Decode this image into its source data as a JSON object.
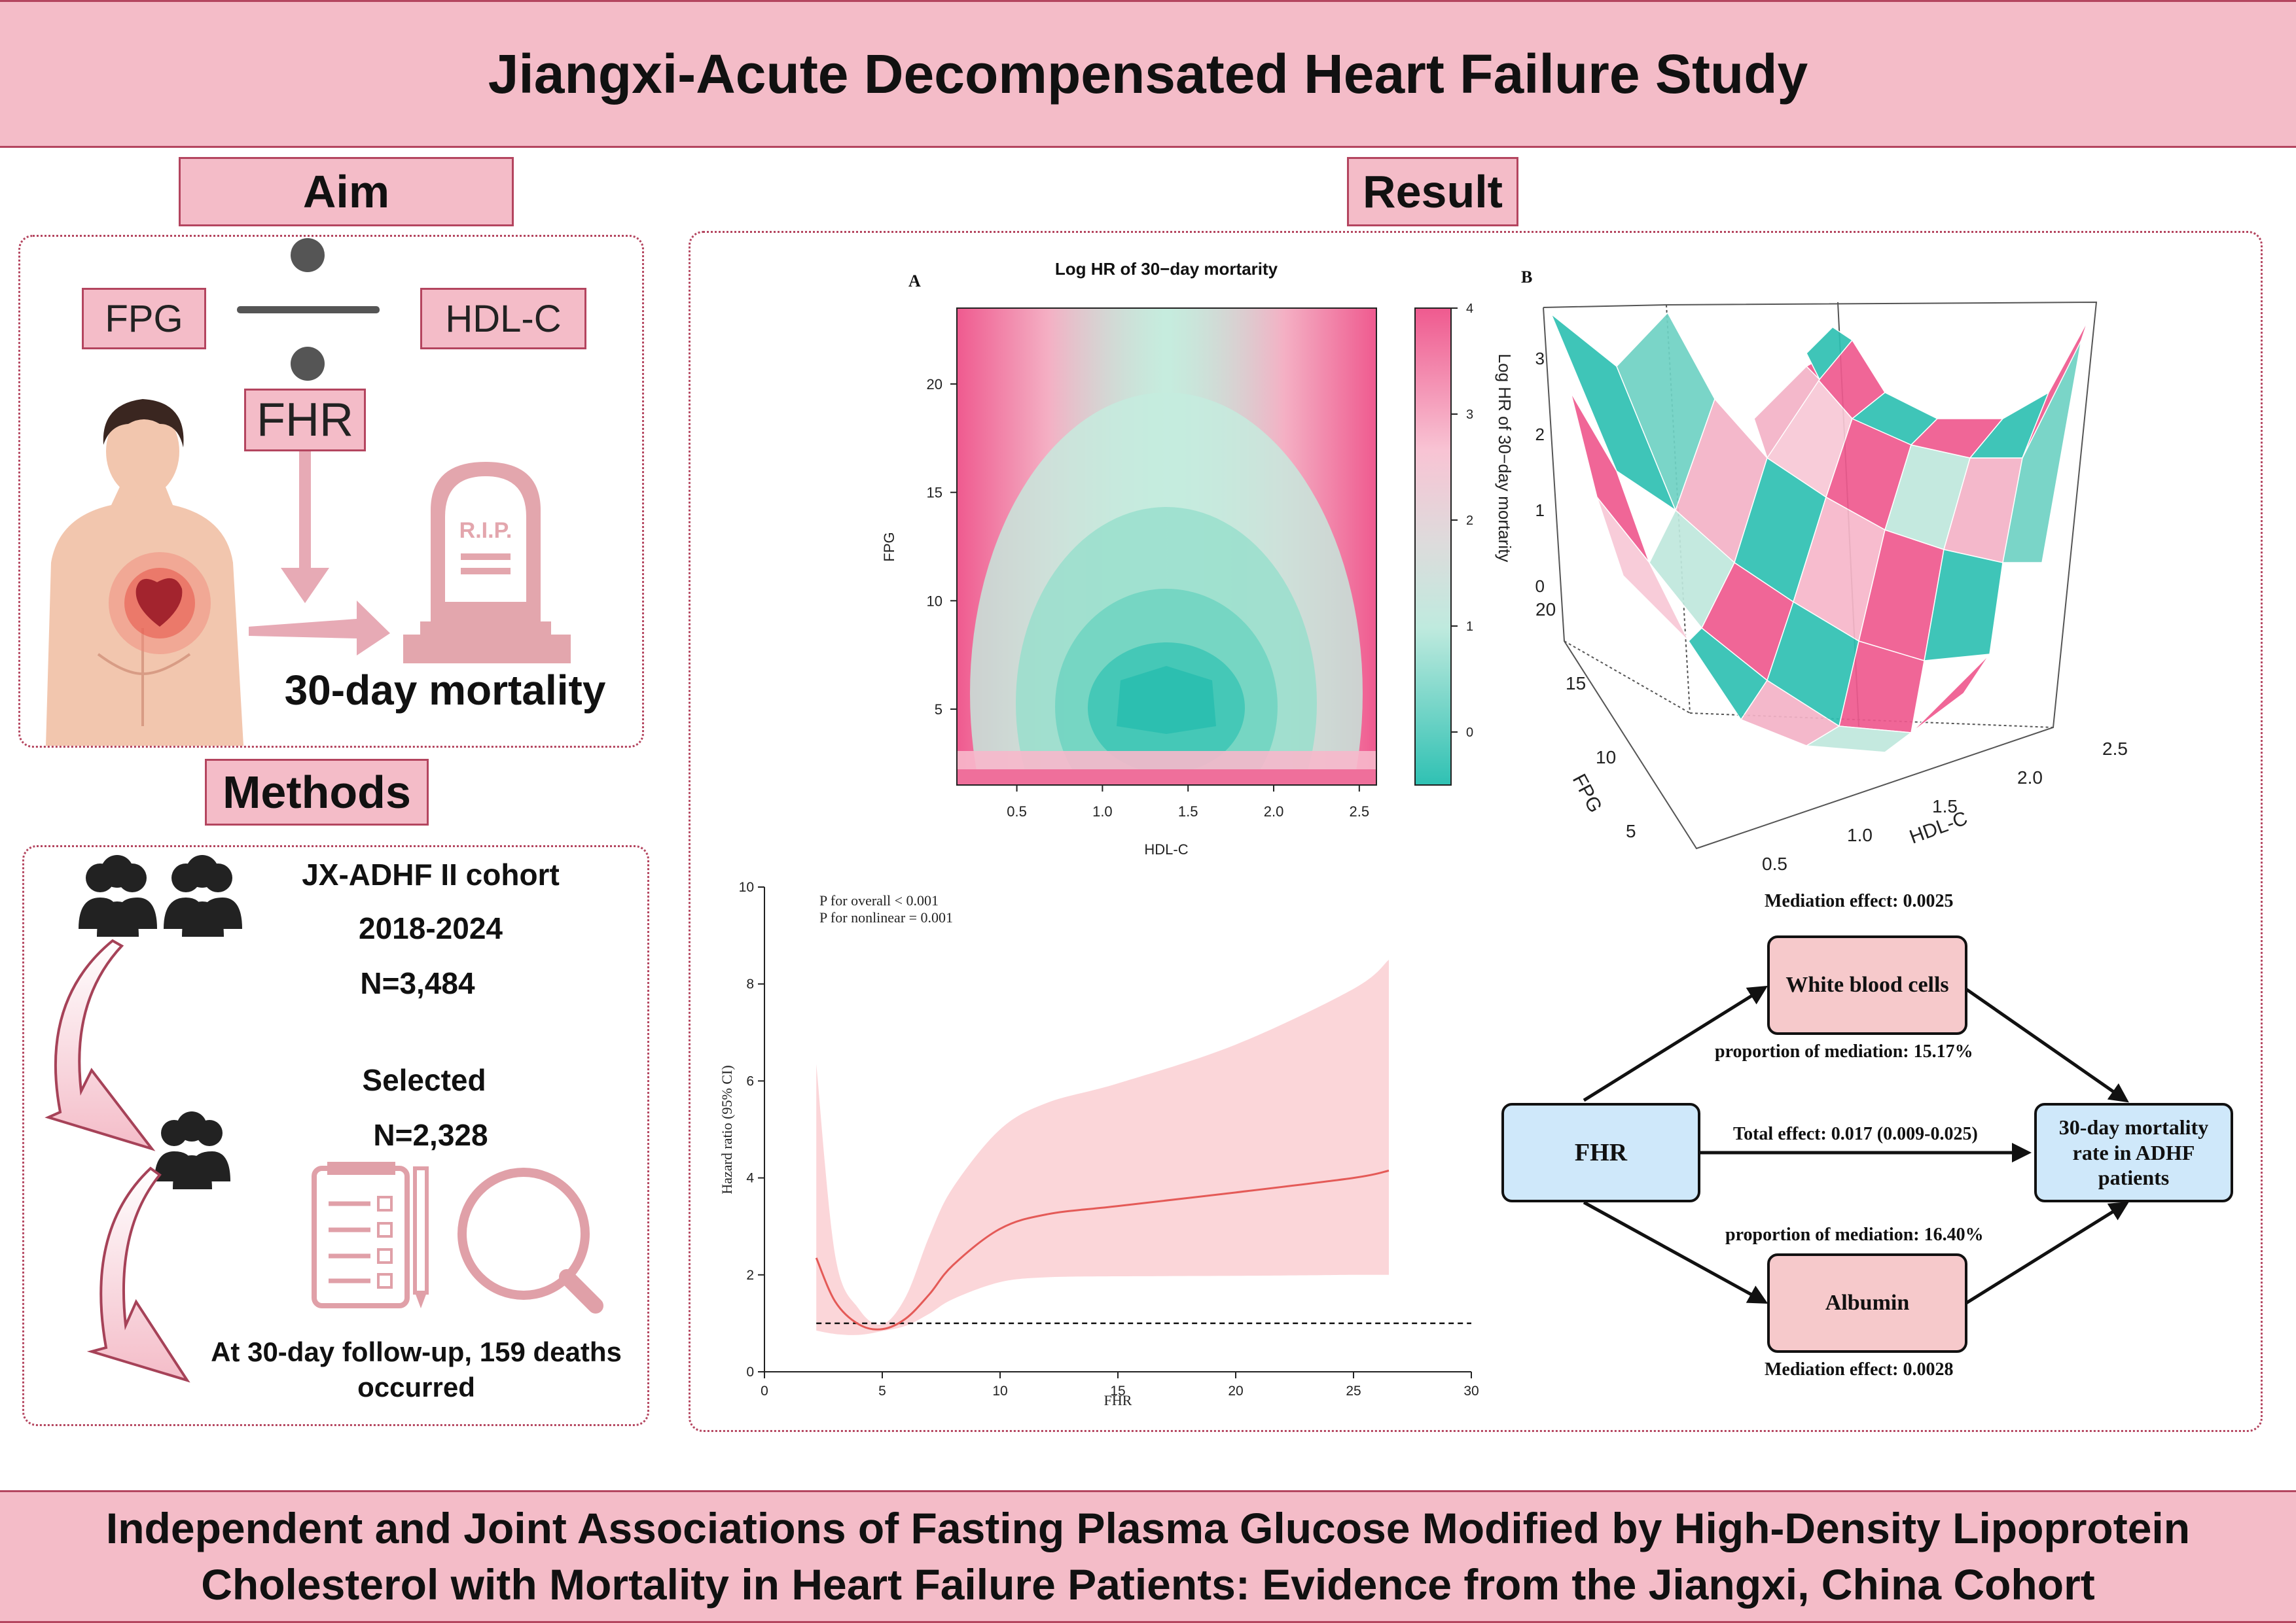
{
  "title": "Jiangxi-Acute Decompensated Heart Failure Study",
  "footer": {
    "line1": "Independent and Joint Associations of Fasting Plasma Glucose Modified by High-Density Lipoprotein",
    "line2": "Cholesterol with Mortality in Heart Failure Patients: Evidence from the Jiangxi, China Cohort"
  },
  "aim": {
    "heading": "Aim",
    "numerator": "FPG",
    "denominator": "HDL-C",
    "ratio": "FHR",
    "tombstone_text": "R.I.P.",
    "outcome": "30-day mortality"
  },
  "methods": {
    "heading": "Methods",
    "cohort": "JX-ADHF II cohort",
    "years": "2018-2024",
    "n_total": "N=3,484",
    "selected_label": "Selected",
    "n_selected": "N=2,328",
    "followup_line1": "At 30-day follow-up, 159 deaths",
    "followup_line2": "occurred"
  },
  "result": {
    "heading": "Result",
    "panel_a": {
      "letter": "A",
      "title": "Log HR of 30−day mortarity",
      "xlabel": "HDL-C",
      "ylabel": "FPG",
      "xticks": [
        "0.5",
        "1.0",
        "1.5",
        "2.0",
        "2.5"
      ],
      "yticks": [
        "5",
        "10",
        "15",
        "20"
      ],
      "colorbar_ticks": [
        "0",
        "1",
        "2",
        "3",
        "4"
      ]
    },
    "panel_b": {
      "letter": "B",
      "zlabel": "Log HR of 30−day mortarity",
      "zticks": [
        "0",
        "1",
        "2",
        "3"
      ],
      "fpg_label": "FPG",
      "fpg_ticks": [
        "5",
        "10",
        "15",
        "20"
      ],
      "hdl_label": "HDL-C",
      "hdl_ticks": [
        "0.5",
        "1.0",
        "1.5",
        "2.0",
        "2.5"
      ]
    },
    "mediation": {
      "top_effect": "Mediation effect: 0.0025",
      "wbc": "White blood cells",
      "wbc_prop": "proportion of mediation: 15.17%",
      "exposure": "FHR",
      "total_effect": "Total effect: 0.017 (0.009-0.025)",
      "outcome_line1": "30-day mortality",
      "outcome_line2": "rate in ADHF",
      "outcome_line3": "patients",
      "alb_prop": "proportion of mediation: 16.40%",
      "albumin": "Albumin",
      "bottom_effect": "Mediation effect: 0.0028"
    }
  },
  "chart_data": [
    {
      "type": "heatmap",
      "title": "Log HR of 30−day mortarity",
      "xlabel": "HDL-C",
      "ylabel": "FPG",
      "xlim": [
        0.15,
        2.6
      ],
      "ylim": [
        1.5,
        23.5
      ],
      "zlim": [
        -0.5,
        4
      ],
      "minimum": {
        "x": 1.35,
        "y": 5.5,
        "z": -0.5
      }
    },
    {
      "type": "line",
      "xlabel": "FHR",
      "ylabel": "Hazard ratio (95% CI)",
      "xlim": [
        0,
        30
      ],
      "ylim": [
        0,
        10
      ],
      "annotations": [
        "P for overall < 0.001",
        "P for nonlinear = 0.001"
      ],
      "reference_line": 1,
      "x": [
        2.2,
        3,
        4,
        5,
        6,
        7,
        8,
        10,
        12,
        15,
        20,
        25,
        26.5
      ],
      "hr": [
        2.35,
        1.45,
        0.98,
        0.88,
        1.1,
        1.6,
        2.2,
        2.95,
        3.25,
        3.42,
        3.7,
        4.0,
        4.15
      ],
      "lower": [
        0.85,
        0.78,
        0.76,
        0.84,
        0.95,
        1.2,
        1.5,
        1.85,
        1.95,
        1.97,
        1.98,
        2.0,
        2.0
      ],
      "upper": [
        6.35,
        2.4,
        1.3,
        0.98,
        1.55,
        2.8,
        3.8,
        5.0,
        5.55,
        5.95,
        6.75,
        7.9,
        8.5
      ]
    }
  ],
  "colors": {
    "banner": "#f4bcc8",
    "border": "#b4455f",
    "teal": "#2fc1b3",
    "pink": "#ef5a8f",
    "ci_band": "#fbd6d9",
    "hr_line": "#e45a57",
    "med_blue": "#cfe8fa",
    "med_pink": "#f6c9cb"
  }
}
